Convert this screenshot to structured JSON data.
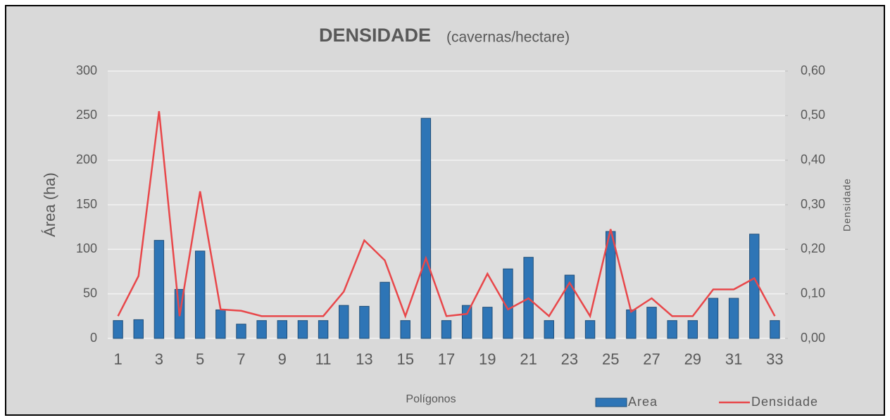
{
  "chart_data": {
    "type": "bar-line",
    "title": "DENSIDADE",
    "subtitle": "(cavernas/hectare)",
    "y_label": "Área (ha)",
    "y2_label": "Densidade",
    "x_label": "Polígonos",
    "categories": [
      1,
      null,
      3,
      null,
      5,
      null,
      7,
      null,
      9,
      null,
      11,
      null,
      13,
      null,
      15,
      null,
      17,
      null,
      19,
      null,
      21,
      null,
      23,
      null,
      25,
      null,
      27,
      null,
      29,
      null,
      31,
      null,
      33
    ],
    "series": [
      {
        "name": "Area",
        "type": "bar",
        "color": "#2e75b6",
        "values": [
          20,
          21,
          110,
          55,
          98,
          32,
          16,
          20,
          20,
          20,
          20,
          37,
          36,
          63,
          20,
          247,
          20,
          37,
          35,
          78,
          91,
          20,
          71,
          20,
          120,
          32,
          35,
          20,
          20,
          45,
          45,
          117,
          20
        ]
      },
      {
        "name": "Densidade",
        "type": "line",
        "axis": "y2",
        "color": "#e8474a",
        "values": [
          0.05,
          0.14,
          0.51,
          0.05,
          0.33,
          0.065,
          0.062,
          0.05,
          0.05,
          0.05,
          0.05,
          0.105,
          0.22,
          0.175,
          0.05,
          0.18,
          0.05,
          0.055,
          0.145,
          0.065,
          0.09,
          0.05,
          0.125,
          0.05,
          0.245,
          0.06,
          0.09,
          0.05,
          0.05,
          0.11,
          0.11,
          0.135,
          0.05
        ]
      }
    ],
    "ylim": [
      0,
      300
    ],
    "yticks": [
      0,
      50,
      100,
      150,
      200,
      250,
      300
    ],
    "y2lim": [
      0,
      0.6
    ],
    "y2ticks": [
      {
        "value": 0,
        "label": "0,00"
      },
      {
        "value": 0.1,
        "label": "0,10"
      },
      {
        "value": 0.2,
        "label": "0,20"
      },
      {
        "value": 0.3,
        "label": "0,30"
      },
      {
        "value": 0.4,
        "label": "0,40"
      },
      {
        "value": 0.5,
        "label": "0,50"
      },
      {
        "value": 0.6,
        "label": "0,60"
      }
    ],
    "grid": true,
    "legend": "bottom-right"
  }
}
